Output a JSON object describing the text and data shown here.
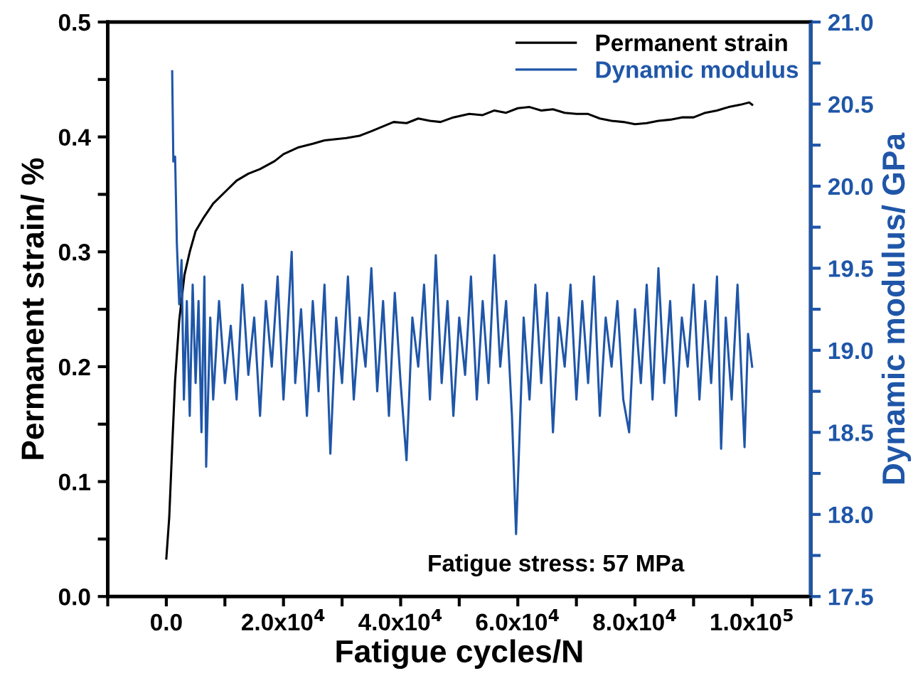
{
  "chart_data": {
    "type": "line",
    "xlabel": "Fatigue cycles/N",
    "ylabel": "Permanent strain/ %",
    "y2label": "Dynamic modulus/ GPa",
    "annotations": [
      "Fatigue stress: 57 MPa"
    ],
    "legend": "top right",
    "xlim": [
      -10000,
      110000
    ],
    "xticks": [
      {
        "value": -10000,
        "label": null
      },
      {
        "value": 0,
        "label": "0.0"
      },
      {
        "value": 10000,
        "label": null
      },
      {
        "value": 20000,
        "label": "2.0x10$^{4}$"
      },
      {
        "value": 30000,
        "label": null
      },
      {
        "value": 40000,
        "label": "4.0x10$^{4}$"
      },
      {
        "value": 50000,
        "label": null
      },
      {
        "value": 60000,
        "label": "6.0x10$^{4}$"
      },
      {
        "value": 70000,
        "label": null
      },
      {
        "value": 80000,
        "label": "8.0x10$^{4}$"
      },
      {
        "value": 90000,
        "label": null
      },
      {
        "value": 100000,
        "label": "1.0x10$^{5}$"
      },
      {
        "value": 110000,
        "label": null
      }
    ],
    "ylim": [
      0,
      0.5
    ],
    "yticks": [
      {
        "value": 0,
        "label": "0.0"
      },
      {
        "value": 0.05,
        "label": null
      },
      0.1,
      {
        "value": 0.15,
        "label": null
      },
      0.2,
      {
        "value": 0.25,
        "label": null
      },
      0.3,
      {
        "value": 0.35,
        "label": null
      },
      0.4,
      {
        "value": 0.45,
        "label": null
      },
      0.5
    ],
    "y2lim": [
      17.5,
      21.0
    ],
    "y2ticks": [
      17.5,
      {
        "value": 17.75,
        "label": null
      },
      {
        "value": 18,
        "label": "18.0"
      },
      {
        "value": 18.25,
        "label": null
      },
      18.5,
      {
        "value": 18.75,
        "label": null
      },
      {
        "value": 19,
        "label": "19.0"
      },
      {
        "value": 19.25,
        "label": null
      },
      19.5,
      {
        "value": 19.75,
        "label": null
      },
      {
        "value": 20,
        "label": "20.0"
      },
      {
        "value": 20.25,
        "label": null
      },
      20.5,
      {
        "value": 20.75,
        "label": null
      },
      {
        "value": 21,
        "label": "21.0"
      }
    ],
    "series": [
      {
        "name": "Permanent strain",
        "color": "#000000",
        "x": [
          0,
          500,
          1000,
          1500,
          2200,
          3100,
          4000,
          5000,
          6400,
          8000,
          10400,
          12000,
          14000,
          16000,
          18500,
          20000,
          22600,
          25000,
          27000,
          30700,
          33000,
          35000,
          38800,
          41000,
          43000,
          45000,
          46800,
          49000,
          51700,
          54000,
          56000,
          58000,
          60000,
          62000,
          64000,
          66000,
          68000,
          70000,
          72000,
          74000,
          76000,
          78000,
          80000,
          82000,
          84000,
          86000,
          88000,
          90000,
          92000,
          94000,
          96000,
          98000,
          99500,
          100000
        ],
        "values": [
          0.033,
          0.069,
          0.13,
          0.188,
          0.24,
          0.28,
          0.3,
          0.318,
          0.33,
          0.342,
          0.354,
          0.362,
          0.368,
          0.372,
          0.379,
          0.385,
          0.391,
          0.394,
          0.397,
          0.399,
          0.401,
          0.405,
          0.413,
          0.412,
          0.416,
          0.414,
          0.413,
          0.417,
          0.42,
          0.419,
          0.423,
          0.421,
          0.425,
          0.426,
          0.423,
          0.424,
          0.421,
          0.42,
          0.42,
          0.416,
          0.414,
          0.413,
          0.411,
          0.412,
          0.414,
          0.415,
          0.417,
          0.417,
          0.421,
          0.423,
          0.426,
          0.428,
          0.43,
          0.428
        ]
      },
      {
        "name": "Dynamic modulus",
        "color": "#1f56a8",
        "axis": "y2",
        "x": [
          1000,
          1200,
          1500,
          1800,
          2200,
          2600,
          3000,
          3500,
          4000,
          4500,
          5000,
          5500,
          6000,
          6500,
          6800,
          7500,
          8000,
          9000,
          10000,
          11000,
          12000,
          13000,
          14000,
          15000,
          16000,
          17000,
          18000,
          19000,
          20000,
          21400,
          22000,
          23000,
          24000,
          25000,
          26000,
          27000,
          28000,
          29000,
          30000,
          31000,
          32000,
          33000,
          34000,
          35000,
          36000,
          37000,
          38000,
          39000,
          40000,
          41000,
          42000,
          43000,
          44000,
          45000,
          46000,
          47000,
          48000,
          49000,
          50000,
          51000,
          52000,
          53000,
          54000,
          55000,
          56000,
          57000,
          58000,
          59000,
          59700,
          61000,
          62000,
          63000,
          64000,
          65000,
          66000,
          67000,
          68000,
          69000,
          70000,
          71000,
          72000,
          73000,
          74000,
          75000,
          76000,
          77000,
          78000,
          79000,
          80000,
          81000,
          82000,
          83000,
          84000,
          85000,
          86000,
          87000,
          88000,
          89000,
          90000,
          91000,
          92000,
          93000,
          94000,
          94700,
          95500,
          96500,
          97500,
          98700,
          99300,
          100000
        ],
        "values": [
          20.7,
          20.15,
          20.18,
          19.65,
          19.28,
          19.55,
          18.7,
          19.3,
          18.6,
          19.4,
          18.8,
          19.3,
          18.5,
          19.45,
          18.29,
          19.2,
          18.7,
          19.3,
          18.8,
          19.15,
          18.7,
          19.4,
          18.85,
          19.2,
          18.6,
          19.3,
          18.9,
          19.45,
          18.7,
          19.6,
          18.8,
          19.25,
          18.6,
          19.3,
          18.75,
          19.4,
          18.37,
          19.2,
          18.8,
          19.45,
          18.7,
          19.2,
          18.9,
          19.5,
          18.75,
          19.3,
          18.6,
          19.35,
          18.8,
          18.33,
          19.2,
          18.9,
          19.4,
          18.7,
          19.58,
          18.8,
          19.3,
          18.6,
          19.2,
          18.85,
          19.45,
          18.7,
          19.3,
          18.8,
          19.58,
          18.9,
          19.3,
          18.6,
          17.88,
          19.2,
          18.7,
          19.4,
          18.8,
          19.35,
          18.5,
          19.2,
          18.9,
          19.4,
          18.7,
          19.3,
          18.8,
          19.45,
          18.6,
          19.2,
          18.9,
          19.3,
          18.7,
          18.5,
          19.25,
          18.8,
          19.4,
          18.7,
          19.5,
          18.8,
          19.3,
          18.6,
          19.2,
          18.9,
          19.4,
          18.7,
          19.3,
          18.8,
          19.45,
          18.4,
          19.2,
          18.7,
          19.4,
          18.41,
          19.1,
          18.9
        ]
      }
    ]
  }
}
